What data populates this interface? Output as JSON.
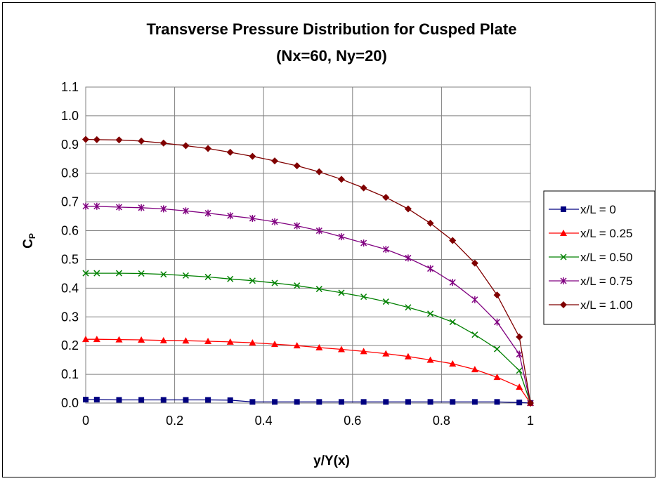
{
  "chart_data": {
    "type": "line",
    "title": "Transverse Pressure Distribution for Cusped Plate",
    "subtitle": "(Nx=60, Ny=20)",
    "xlabel": "y/Y(x)",
    "ylabel": "C",
    "ylabel_sub": "P",
    "xlim": [
      0,
      1
    ],
    "ylim": [
      0,
      1.1
    ],
    "xticks": [
      "0",
      "0.2",
      "0.4",
      "0.6",
      "0.8",
      "1"
    ],
    "yticks": [
      "0.0",
      "0.1",
      "0.2",
      "0.3",
      "0.4",
      "0.5",
      "0.6",
      "0.7",
      "0.8",
      "0.9",
      "1.0",
      "1.1"
    ],
    "grid": true,
    "legend_position": "right",
    "x": [
      0,
      0.025,
      0.075,
      0.125,
      0.175,
      0.225,
      0.275,
      0.325,
      0.375,
      0.425,
      0.475,
      0.525,
      0.575,
      0.625,
      0.675,
      0.725,
      0.775,
      0.825,
      0.875,
      0.925,
      0.975,
      1.0
    ],
    "series": [
      {
        "name": "x/L = 0",
        "color": "#000080",
        "marker": "square",
        "values": [
          0.012,
          0.012,
          0.011,
          0.011,
          0.011,
          0.011,
          0.011,
          0.01,
          0.004,
          0.004,
          0.004,
          0.004,
          0.004,
          0.004,
          0.004,
          0.004,
          0.004,
          0.004,
          0.004,
          0.004,
          0.002,
          0.0
        ]
      },
      {
        "name": "x/L = 0.25",
        "color": "#ff0000",
        "marker": "triangle",
        "values": [
          0.222,
          0.222,
          0.221,
          0.22,
          0.218,
          0.217,
          0.215,
          0.213,
          0.21,
          0.205,
          0.2,
          0.193,
          0.187,
          0.18,
          0.172,
          0.162,
          0.15,
          0.137,
          0.117,
          0.09,
          0.056,
          0.0
        ]
      },
      {
        "name": "x/L = 0.50",
        "color": "#008000",
        "marker": "x",
        "values": [
          0.452,
          0.452,
          0.452,
          0.451,
          0.448,
          0.444,
          0.439,
          0.432,
          0.426,
          0.418,
          0.409,
          0.397,
          0.384,
          0.37,
          0.353,
          0.333,
          0.311,
          0.282,
          0.238,
          0.188,
          0.113,
          0.0
        ]
      },
      {
        "name": "x/L = 0.75",
        "color": "#800080",
        "marker": "star",
        "values": [
          0.685,
          0.685,
          0.682,
          0.68,
          0.676,
          0.669,
          0.661,
          0.652,
          0.643,
          0.631,
          0.617,
          0.6,
          0.579,
          0.557,
          0.535,
          0.505,
          0.468,
          0.42,
          0.36,
          0.282,
          0.17,
          0.0
        ]
      },
      {
        "name": "x/L = 1.00",
        "color": "#800000",
        "marker": "diamond",
        "values": [
          0.918,
          0.917,
          0.916,
          0.912,
          0.905,
          0.896,
          0.886,
          0.873,
          0.859,
          0.843,
          0.826,
          0.805,
          0.779,
          0.749,
          0.716,
          0.676,
          0.626,
          0.566,
          0.487,
          0.376,
          0.23,
          0.0
        ]
      }
    ]
  }
}
